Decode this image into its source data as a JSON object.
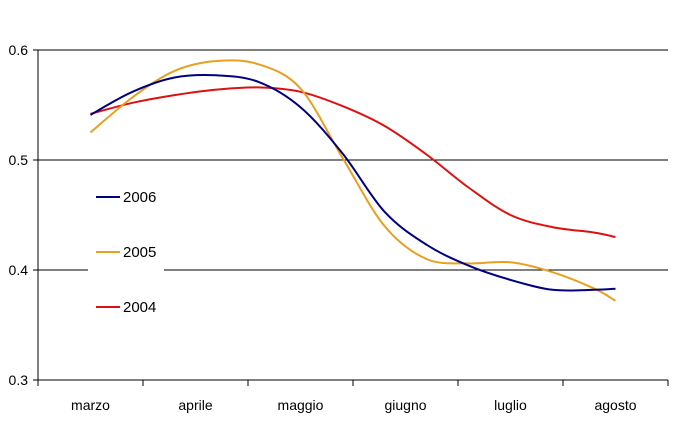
{
  "chart_data": {
    "type": "line",
    "title": "",
    "xlabel": "",
    "ylabel": "",
    "categories": [
      "marzo",
      "aprile",
      "maggio",
      "giugno",
      "luglio",
      "agosto"
    ],
    "ylim": [
      0.3,
      0.6
    ],
    "yticks": [
      "0.3",
      "0.4",
      "0.5",
      "0.6"
    ],
    "grid": true,
    "legend": "left-middle",
    "series": [
      {
        "name": "2006",
        "color": "#000080",
        "points": [
          {
            "x": 0.0,
            "y": 0.541
          },
          {
            "x": 0.4,
            "y": 0.562
          },
          {
            "x": 0.8,
            "y": 0.575
          },
          {
            "x": 1.2,
            "y": 0.577
          },
          {
            "x": 1.6,
            "y": 0.571
          },
          {
            "x": 2.0,
            "y": 0.548
          },
          {
            "x": 2.4,
            "y": 0.506
          },
          {
            "x": 2.8,
            "y": 0.453
          },
          {
            "x": 3.2,
            "y": 0.423
          },
          {
            "x": 3.6,
            "y": 0.404
          },
          {
            "x": 4.0,
            "y": 0.391
          },
          {
            "x": 4.4,
            "y": 0.382
          },
          {
            "x": 4.8,
            "y": 0.382
          },
          {
            "x": 5.0,
            "y": 0.383
          }
        ]
      },
      {
        "name": "2005",
        "color": "#e8a020",
        "points": [
          {
            "x": 0.0,
            "y": 0.525
          },
          {
            "x": 0.4,
            "y": 0.557
          },
          {
            "x": 0.8,
            "y": 0.581
          },
          {
            "x": 1.2,
            "y": 0.59
          },
          {
            "x": 1.6,
            "y": 0.587
          },
          {
            "x": 2.0,
            "y": 0.565
          },
          {
            "x": 2.4,
            "y": 0.502
          },
          {
            "x": 2.8,
            "y": 0.44
          },
          {
            "x": 3.2,
            "y": 0.41
          },
          {
            "x": 3.6,
            "y": 0.406
          },
          {
            "x": 4.0,
            "y": 0.407
          },
          {
            "x": 4.4,
            "y": 0.398
          },
          {
            "x": 4.8,
            "y": 0.383
          },
          {
            "x": 5.0,
            "y": 0.372
          }
        ]
      },
      {
        "name": "2004",
        "color": "#dd1111",
        "points": [
          {
            "x": 0.0,
            "y": 0.542
          },
          {
            "x": 0.4,
            "y": 0.552
          },
          {
            "x": 0.8,
            "y": 0.559
          },
          {
            "x": 1.2,
            "y": 0.564
          },
          {
            "x": 1.6,
            "y": 0.566
          },
          {
            "x": 2.0,
            "y": 0.562
          },
          {
            "x": 2.4,
            "y": 0.549
          },
          {
            "x": 2.8,
            "y": 0.531
          },
          {
            "x": 3.2,
            "y": 0.505
          },
          {
            "x": 3.6,
            "y": 0.475
          },
          {
            "x": 4.0,
            "y": 0.45
          },
          {
            "x": 4.4,
            "y": 0.439
          },
          {
            "x": 4.8,
            "y": 0.434
          },
          {
            "x": 5.0,
            "y": 0.43
          }
        ]
      }
    ]
  }
}
